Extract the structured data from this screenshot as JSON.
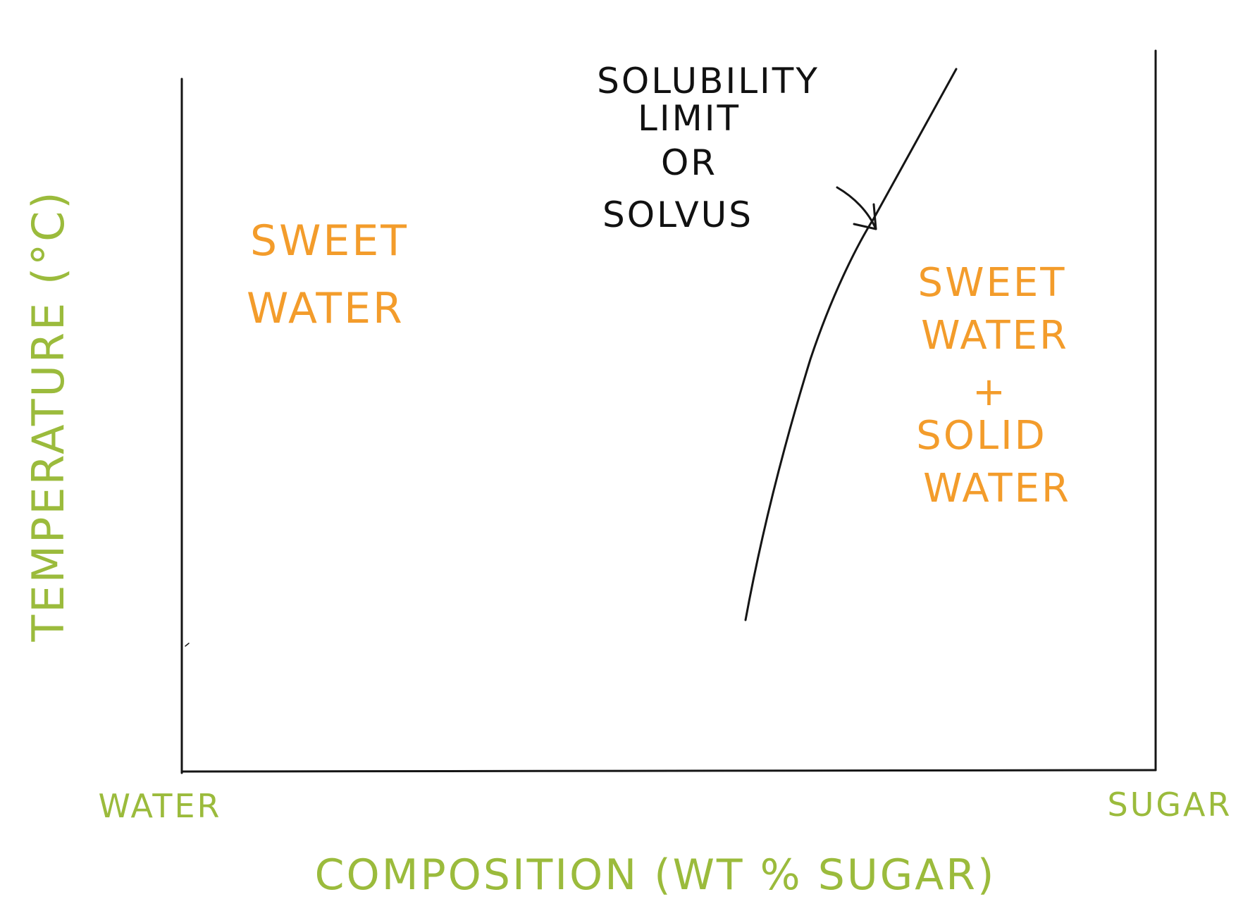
{
  "diagram": {
    "solvus_label": [
      "SOLUBILITY",
      "LIMIT",
      "OR",
      "SOLVUS"
    ],
    "region_left_label": [
      "SWEET",
      "WATER"
    ],
    "region_right_label": [
      "SWEET",
      "WATER",
      "+",
      "SOLID",
      "WATER"
    ],
    "x_left_end_label": "WATER",
    "x_right_end_label": "SUGAR",
    "x_axis_label": "COMPOSITION (WT % SUGAR)",
    "y_axis_label": "TEMPERATURE (°C)",
    "colors": {
      "ink": "#151515",
      "region_label": "#f39c2b",
      "axis_label": "#9bbb3c"
    }
  }
}
